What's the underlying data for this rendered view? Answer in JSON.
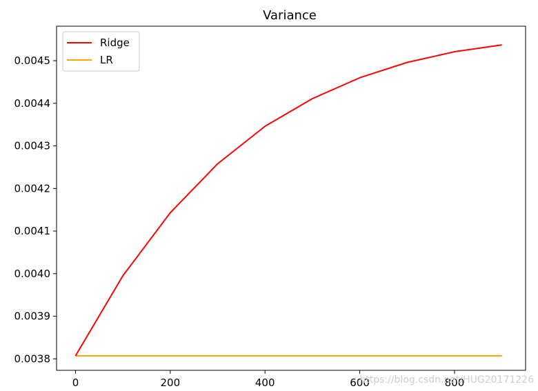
{
  "chart_data": {
    "type": "line",
    "title": "Variance",
    "xlabel": "",
    "ylabel": "",
    "xlim": [
      -40,
      950
    ],
    "ylim": [
      0.003773,
      0.004581
    ],
    "xticks": [
      0,
      200,
      400,
      600,
      800
    ],
    "xtick_labels": [
      "0",
      "200",
      "400",
      "600",
      "800"
    ],
    "yticks": [
      0.0038,
      0.0039,
      0.004,
      0.0041,
      0.0042,
      0.0043,
      0.0044,
      0.0045
    ],
    "ytick_labels": [
      "0.0038",
      "0.0039",
      "0.0040",
      "0.0041",
      "0.0042",
      "0.0043",
      "0.0044",
      "0.0045"
    ],
    "grid": false,
    "legend_position": "upper-left",
    "series": [
      {
        "name": "Ridge",
        "color": "#ff0000",
        "x": [
          0,
          100,
          200,
          300,
          400,
          500,
          600,
          700,
          800,
          900
        ],
        "values": [
          0.003807,
          0.003995,
          0.004143,
          0.004258,
          0.004346,
          0.004411,
          0.00446,
          0.004496,
          0.004521,
          0.004537
        ]
      },
      {
        "name": "LR",
        "color": "#ffa500",
        "x": [
          0,
          100,
          200,
          300,
          400,
          500,
          600,
          700,
          800,
          900
        ],
        "values": [
          0.003807,
          0.003807,
          0.003807,
          0.003807,
          0.003807,
          0.003807,
          0.003807,
          0.003807,
          0.003807,
          0.003807
        ]
      }
    ]
  },
  "watermark": "https://blog.csdn.net/HUG20171226"
}
